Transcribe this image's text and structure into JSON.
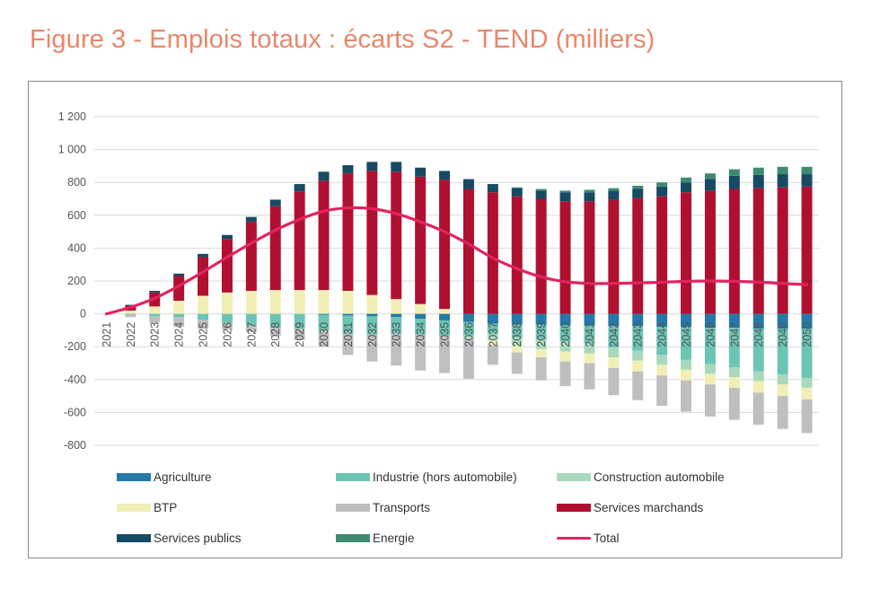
{
  "title": "Figure 3 - Emplois totaux : écarts S2 - TEND (milliers)",
  "chart_data": {
    "type": "bar",
    "subtype": "stacked-bar-with-line",
    "title": "Figure 3 - Emplois totaux : écarts S2 - TEND (milliers)",
    "xlabel": "",
    "ylabel": "",
    "ylim": [
      -800,
      1200
    ],
    "yticks": [
      1200,
      1000,
      800,
      600,
      400,
      200,
      0,
      -200,
      -400,
      -600,
      -800
    ],
    "ytick_labels": [
      "1 200",
      "1 000",
      "800",
      "600",
      "400",
      "200",
      "0",
      "-200",
      "-400",
      "-600",
      "-800"
    ],
    "grid": true,
    "legend_position": "bottom",
    "categories": [
      "2021",
      "2022",
      "2023",
      "2024",
      "2025",
      "2026",
      "2027",
      "2028",
      "2029",
      "2030",
      "2031",
      "2032",
      "2033",
      "2034",
      "2035",
      "2036",
      "2037",
      "2038",
      "2039",
      "2040",
      "2041",
      "2042",
      "2043",
      "2044",
      "2045",
      "2046",
      "2047",
      "2048",
      "2049",
      "2050"
    ],
    "xtick_labels": [
      "2021",
      "2022",
      "2023",
      "2024",
      "2025",
      "2026",
      "2027",
      "2028",
      "2029",
      "2030",
      "2031",
      "2032",
      "2033",
      "2034",
      "2035",
      "2036",
      "2037",
      "2038",
      "2039",
      "2040",
      "2041",
      "2042",
      "2043",
      "2044",
      "2045",
      "2046",
      "2047",
      "2048",
      "2049",
      "2050"
    ],
    "series": [
      {
        "name": "Agriculture",
        "color": "#2479a8",
        "values": [
          0,
          0,
          0,
          0,
          0,
          0,
          0,
          0,
          0,
          -5,
          -10,
          -15,
          -20,
          -30,
          -40,
          -50,
          -60,
          -65,
          -65,
          -70,
          -70,
          -75,
          -75,
          -80,
          -80,
          -85,
          -85,
          -90,
          -90,
          -90
        ]
      },
      {
        "name": "Industrie (hors automobile)",
        "color": "#6cc4b4",
        "values": [
          0,
          -5,
          -15,
          -20,
          -35,
          -55,
          -70,
          -85,
          -90,
          -95,
          -110,
          -110,
          -100,
          -95,
          -90,
          -80,
          -60,
          -80,
          -90,
          -100,
          -110,
          -130,
          -150,
          -170,
          -200,
          -220,
          -240,
          -260,
          -280,
          -300
        ]
      },
      {
        "name": "Construction automobile",
        "color": "#a9d9bd",
        "values": [
          0,
          0,
          0,
          0,
          0,
          0,
          0,
          0,
          0,
          0,
          0,
          0,
          0,
          0,
          0,
          -20,
          -40,
          -50,
          -60,
          -60,
          -60,
          -60,
          -60,
          -60,
          -60,
          -60,
          -60,
          -60,
          -60,
          -60
        ]
      },
      {
        "name": "BTP",
        "color": "#f1efb6",
        "values": [
          0,
          20,
          45,
          80,
          110,
          130,
          140,
          145,
          145,
          145,
          140,
          115,
          90,
          60,
          30,
          0,
          -30,
          -40,
          -50,
          -60,
          -60,
          -65,
          -65,
          -65,
          -65,
          -65,
          -65,
          -70,
          -70,
          -70
        ]
      },
      {
        "name": "Transports",
        "color": "#bfbfbf",
        "values": [
          0,
          -15,
          -40,
          -60,
          -55,
          -40,
          -40,
          -50,
          -70,
          -100,
          -130,
          -165,
          -195,
          -220,
          -230,
          -245,
          -120,
          -130,
          -140,
          -150,
          -160,
          -165,
          -175,
          -185,
          -190,
          -195,
          -195,
          -195,
          -200,
          -205
        ]
      },
      {
        "name": "Services marchands",
        "color": "#b01030",
        "values": [
          0,
          30,
          85,
          150,
          235,
          325,
          420,
          510,
          600,
          665,
          715,
          755,
          775,
          775,
          785,
          760,
          740,
          715,
          700,
          685,
          685,
          695,
          705,
          715,
          740,
          750,
          760,
          765,
          770,
          775
        ]
      },
      {
        "name": "Services publics",
        "color": "#174a63",
        "values": [
          0,
          5,
          10,
          15,
          20,
          25,
          30,
          40,
          45,
          55,
          50,
          55,
          60,
          55,
          55,
          60,
          50,
          50,
          50,
          55,
          55,
          55,
          55,
          60,
          60,
          70,
          80,
          80,
          80,
          75
        ]
      },
      {
        "name": "Energie",
        "color": "#3e8a73",
        "values": [
          0,
          0,
          0,
          0,
          0,
          0,
          0,
          0,
          0,
          0,
          0,
          0,
          0,
          0,
          0,
          0,
          0,
          5,
          10,
          10,
          15,
          15,
          20,
          25,
          30,
          35,
          40,
          45,
          45,
          45
        ]
      }
    ],
    "line": {
      "name": "Total",
      "color": "#e0245e",
      "values": [
        0,
        40,
        95,
        170,
        255,
        345,
        430,
        510,
        575,
        625,
        645,
        640,
        610,
        560,
        500,
        425,
        340,
        275,
        225,
        195,
        185,
        185,
        188,
        192,
        198,
        200,
        198,
        193,
        185,
        178
      ]
    }
  },
  "legend": [
    {
      "label": "Agriculture",
      "color": "#2479a8",
      "kind": "bar"
    },
    {
      "label": "Industrie (hors automobile)",
      "color": "#6cc4b4",
      "kind": "bar"
    },
    {
      "label": "Construction automobile",
      "color": "#a9d9bd",
      "kind": "bar"
    },
    {
      "label": "BTP",
      "color": "#f1efb6",
      "kind": "bar"
    },
    {
      "label": "Transports",
      "color": "#bfbfbf",
      "kind": "bar"
    },
    {
      "label": "Services marchands",
      "color": "#b01030",
      "kind": "bar"
    },
    {
      "label": "Services publics",
      "color": "#174a63",
      "kind": "bar"
    },
    {
      "label": "Energie",
      "color": "#3e8a73",
      "kind": "bar"
    },
    {
      "label": "Total",
      "color": "#e0245e",
      "kind": "line"
    }
  ]
}
